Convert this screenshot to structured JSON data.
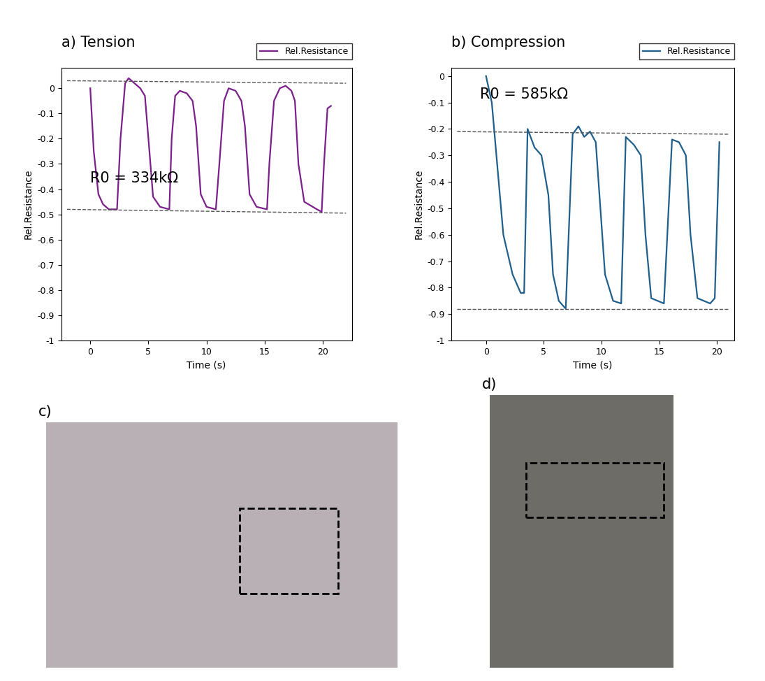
{
  "chart_data": [
    {
      "type": "line",
      "title": "a) Tension",
      "x_label": "Time (s)",
      "y_label": "Rel.Resistance",
      "annotation": "R0 = 334kΩ",
      "legend": "upper right",
      "xlim": [
        -2.5,
        22.5
      ],
      "xticks": [
        0,
        5,
        10,
        15,
        20
      ],
      "ylim": [
        -1,
        0.08
      ],
      "yticks": [
        -1,
        -0.9,
        -0.8,
        -0.7,
        -0.6,
        -0.5,
        -0.4,
        -0.3,
        -0.2,
        -0.1,
        0
      ],
      "series": [
        {
          "name": "Rel.Resistance",
          "color": "#7b1f8a",
          "line_style": "solid",
          "x": [
            0,
            0.3,
            0.7,
            1.1,
            1.6,
            2.3,
            2.6,
            3.0,
            3.3,
            3.8,
            4.3,
            4.7,
            5.0,
            5.4,
            6.0,
            6.8,
            7.0,
            7.3,
            7.7,
            8.3,
            8.8,
            9.1,
            9.5,
            10.0,
            10.8,
            11.1,
            11.5,
            11.9,
            12.5,
            13.0,
            13.3,
            13.7,
            14.3,
            15.2,
            15.4,
            15.8,
            16.3,
            16.8,
            17.3,
            17.6,
            17.9,
            18.4,
            19.5,
            19.9,
            20.1,
            20.4,
            20.7
          ],
          "values": [
            0,
            -0.25,
            -0.42,
            -0.46,
            -0.48,
            -0.48,
            -0.2,
            0.02,
            0.04,
            0.02,
            0.0,
            -0.03,
            -0.2,
            -0.43,
            -0.47,
            -0.48,
            -0.2,
            -0.03,
            -0.01,
            -0.02,
            -0.05,
            -0.15,
            -0.42,
            -0.47,
            -0.48,
            -0.3,
            -0.05,
            0.0,
            -0.01,
            -0.05,
            -0.15,
            -0.42,
            -0.47,
            -0.48,
            -0.3,
            -0.05,
            0.0,
            0.01,
            -0.01,
            -0.05,
            -0.3,
            -0.45,
            -0.48,
            -0.49,
            -0.3,
            -0.08,
            -0.07
          ]
        }
      ],
      "reference_lines": [
        {
          "x": [
            -2,
            22
          ],
          "y": [
            0.03,
            0.02
          ],
          "color": "#555555",
          "line_style": "dashed"
        },
        {
          "x": [
            -2,
            22
          ],
          "y": [
            -0.48,
            -0.495
          ],
          "color": "#555555",
          "line_style": "dashed"
        }
      ]
    },
    {
      "type": "line",
      "title": "b) Compression",
      "x_label": "Time (s)",
      "y_label": "Rel.Resistance",
      "annotation": "R0 = 585kΩ",
      "legend": "upper right",
      "xlim": [
        -3,
        21.5
      ],
      "xticks": [
        0,
        5,
        10,
        15,
        20
      ],
      "ylim": [
        -1,
        0.03
      ],
      "yticks": [
        -1,
        -0.9,
        -0.8,
        -0.7,
        -0.6,
        -0.5,
        -0.4,
        -0.3,
        -0.2,
        -0.1,
        0
      ],
      "series": [
        {
          "name": "Rel.Resistance",
          "color": "#1f5f8b",
          "line_style": "solid",
          "x": [
            0,
            0.5,
            1.0,
            1.5,
            2.3,
            3.0,
            3.3,
            3.6,
            4.2,
            4.8,
            5.4,
            5.8,
            6.3,
            6.9,
            7.5,
            8.0,
            8.5,
            9.0,
            9.5,
            9.9,
            10.3,
            11.0,
            11.7,
            12.1,
            12.8,
            13.4,
            13.8,
            14.3,
            15.4,
            16.1,
            16.7,
            17.3,
            17.7,
            18.3,
            19.4,
            19.8,
            20.2
          ],
          "values": [
            0,
            -0.1,
            -0.35,
            -0.6,
            -0.75,
            -0.82,
            -0.82,
            -0.2,
            -0.27,
            -0.3,
            -0.45,
            -0.75,
            -0.85,
            -0.88,
            -0.22,
            -0.19,
            -0.23,
            -0.21,
            -0.25,
            -0.5,
            -0.75,
            -0.85,
            -0.86,
            -0.23,
            -0.26,
            -0.3,
            -0.6,
            -0.84,
            -0.86,
            -0.24,
            -0.25,
            -0.3,
            -0.6,
            -0.84,
            -0.86,
            -0.84,
            -0.25
          ]
        }
      ],
      "reference_lines": [
        {
          "x": [
            -2.5,
            21
          ],
          "y": [
            -0.21,
            -0.22
          ],
          "color": "#555555",
          "line_style": "dashed"
        },
        {
          "x": [
            -2.5,
            21
          ],
          "y": [
            -0.88,
            -0.88
          ],
          "color": "#555555",
          "line_style": "dashed"
        }
      ]
    }
  ],
  "images": [
    {
      "label": "c)"
    },
    {
      "label": "d)"
    }
  ]
}
